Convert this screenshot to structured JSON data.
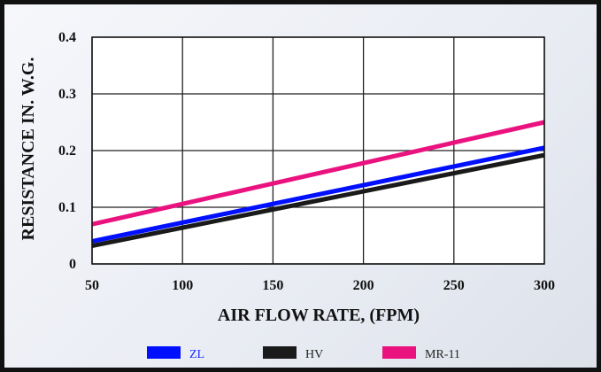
{
  "chart_data": {
    "type": "line",
    "title": "",
    "xlabel": "AIR FLOW RATE, (FPM)",
    "ylabel": "RESISTANCE IN. W.G.",
    "xlim": [
      50,
      300
    ],
    "ylim": [
      0,
      0.4
    ],
    "x_ticks": [
      "50",
      "100",
      "150",
      "200",
      "250",
      "300"
    ],
    "y_ticks": [
      "0",
      "0.1",
      "0.2",
      "0.3",
      "0.4"
    ],
    "grid": true,
    "legend_position": "bottom",
    "series": [
      {
        "name": "ZL",
        "color": "#0010ff",
        "label_color": "#1a2cff",
        "x": [
          50,
          300
        ],
        "y": [
          0.04,
          0.205
        ]
      },
      {
        "name": "HV",
        "color": "#1a1a1a",
        "label_color": "#222222",
        "x": [
          50,
          300
        ],
        "y": [
          0.032,
          0.192
        ]
      },
      {
        "name": "MR-11",
        "color": "#ea127f",
        "label_color": "#222222",
        "x": [
          50,
          300
        ],
        "y": [
          0.07,
          0.25
        ]
      }
    ]
  }
}
